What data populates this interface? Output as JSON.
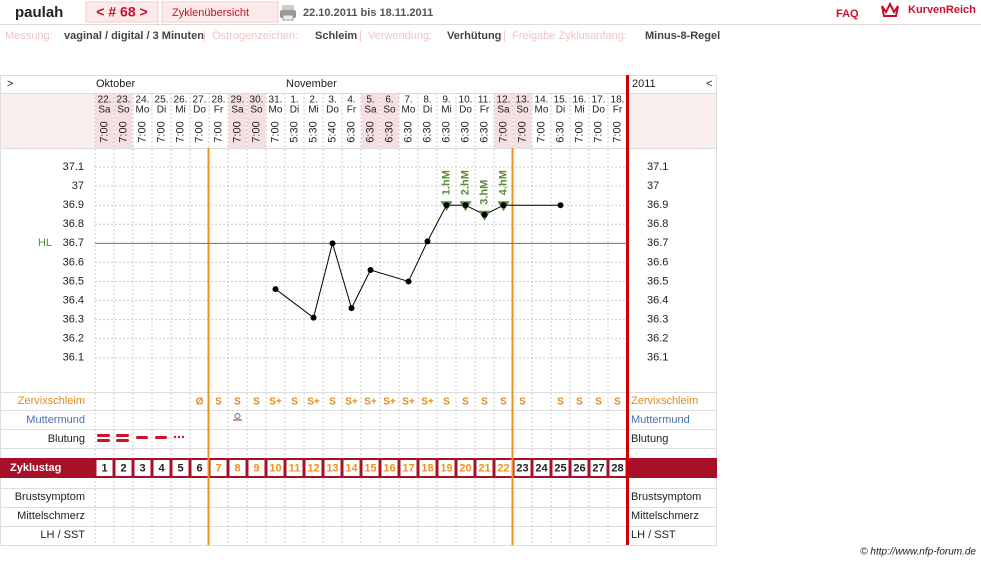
{
  "header": {
    "user": "paulah",
    "cycle": "< # 68 >",
    "overview": "Zyklenübersicht",
    "range": "22.10.2011 bis 18.11.2011",
    "faq": "FAQ",
    "brand": "KurvenReich"
  },
  "info": [
    {
      "label": "Messung:",
      "value": "vaginal / digital / 3 Minuten"
    },
    {
      "label": "Östrogenzeichen:",
      "value": "Schleim"
    },
    {
      "label": "Verwendung:",
      "value": "Verhütung"
    },
    {
      "label": "Freigabe Zyklusanfang:",
      "value": "Minus-8-Regel"
    }
  ],
  "nav": {
    "prev": ">",
    "next": "<",
    "year": "2011",
    "months": [
      "Oktober",
      "November"
    ]
  },
  "days": {
    "dates": [
      "22.",
      "23.",
      "24.",
      "25.",
      "26.",
      "27.",
      "28.",
      "29.",
      "30.",
      "31.",
      "1.",
      "2.",
      "3.",
      "4.",
      "5.",
      "6.",
      "7.",
      "8.",
      "9.",
      "10.",
      "11.",
      "12.",
      "13.",
      "14.",
      "15.",
      "16.",
      "17.",
      "18."
    ],
    "weekdays": [
      "Sa",
      "So",
      "Mo",
      "Di",
      "Mi",
      "Do",
      "Fr",
      "Sa",
      "So",
      "Mo",
      "Di",
      "Mi",
      "Do",
      "Fr",
      "Sa",
      "So",
      "Mo",
      "Di",
      "Mi",
      "Do",
      "Fr",
      "Sa",
      "So",
      "Mo",
      "Di",
      "Mi",
      "Do",
      "Fr"
    ],
    "times": [
      "7:00",
      "7:00",
      "7:00",
      "7:00",
      "7:00",
      "7:00",
      "7:00",
      "7:00",
      "7:00",
      "7:00",
      "5:30",
      "5:30",
      "5:40",
      "6:30",
      "6:30",
      "6:30",
      "6:30",
      "6:30",
      "6:30",
      "6:30",
      "6:30",
      "7:00",
      "7:00",
      "7:00",
      "6:30",
      "7:00",
      "7:00",
      "7:00"
    ]
  },
  "chart_data": {
    "type": "line",
    "x": [
      10,
      12,
      13,
      14,
      15,
      17,
      18,
      19,
      20,
      21,
      22,
      25
    ],
    "values": [
      36.46,
      36.31,
      36.7,
      36.36,
      36.56,
      36.5,
      36.71,
      36.9,
      36.9,
      36.85,
      36.9,
      36.9
    ],
    "color": "#000000",
    "xlim": [
      0.5,
      28.5
    ],
    "xticks": [
      1,
      2,
      3,
      4,
      5,
      6,
      7,
      8,
      9,
      10,
      11,
      12,
      13,
      14,
      15,
      16,
      17,
      18,
      19,
      20,
      21,
      22,
      23,
      24,
      25,
      26,
      27,
      28
    ],
    "ylim": [
      35.92,
      37.2
    ],
    "yticks": [
      36.1,
      36.2,
      36.3,
      36.4,
      36.5,
      36.6,
      36.7,
      36.8,
      36.9,
      37,
      37.1
    ],
    "grid": true,
    "coverline": {
      "value": 36.7,
      "label": "HL",
      "color": "#5b8c3a"
    },
    "annotations": [
      {
        "x": 19,
        "text": "1.hM"
      },
      {
        "x": 20,
        "text": "2.hM"
      },
      {
        "x": 21,
        "text": "3.hM"
      },
      {
        "x": 22,
        "text": "4.hM"
      }
    ],
    "annotation_color": "#5b8c3a"
  },
  "rows": {
    "cervix": {
      "label": "Zervixschleim",
      "values": [
        null,
        null,
        null,
        null,
        null,
        "Ø",
        "S",
        "S",
        "S",
        "S+",
        "S",
        "S+",
        "S",
        "S+",
        "S+",
        "S+",
        "S+",
        "S+",
        "S",
        "S",
        "S",
        "S",
        "S",
        null,
        "S",
        "S",
        "S",
        "S"
      ]
    },
    "cervix_position": {
      "label": "Muttermund"
    },
    "bleeding": {
      "label": "Blutung"
    },
    "cycle_day": {
      "label": "Zyklustag"
    },
    "breast": {
      "label": "Brustsymptom"
    },
    "pain": {
      "label": "Mittelschmerz"
    },
    "lh": {
      "label": "LH / SST"
    }
  },
  "footer": "© http://www.nfp-forum.de"
}
